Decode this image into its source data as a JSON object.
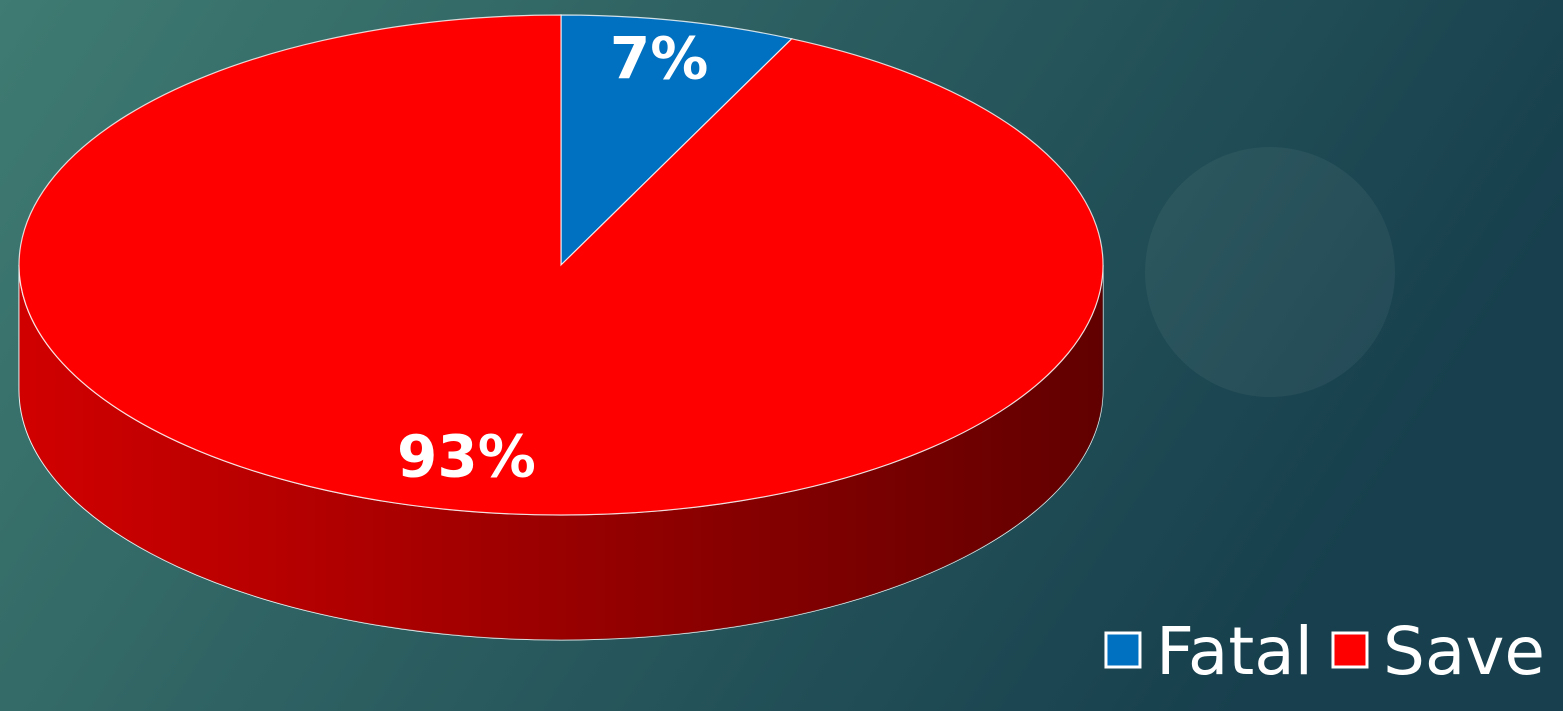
{
  "chart_data": {
    "type": "pie",
    "categories": [
      "Fatal",
      "Save"
    ],
    "series": [
      {
        "values": [
          7,
          93
        ],
        "value_labels": [
          "7%",
          "93%"
        ],
        "colors": [
          "#0070c0",
          "#ff0000"
        ]
      }
    ],
    "legend": "bottom-right"
  }
}
